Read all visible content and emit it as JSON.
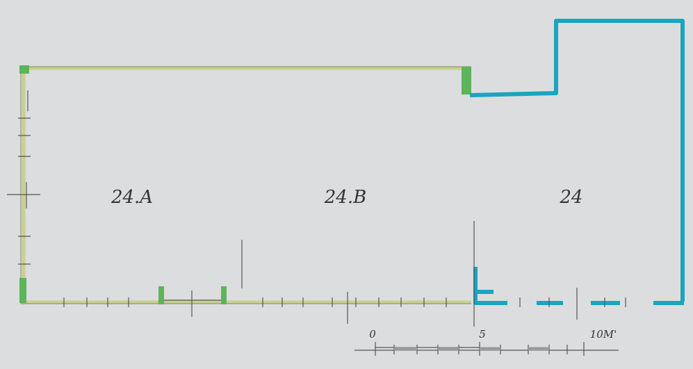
{
  "rooms": [
    {
      "label": "24.A"
    },
    {
      "label": "24.B"
    },
    {
      "label": "24"
    }
  ],
  "scale": {
    "labels": [
      "0",
      "5",
      "10M'"
    ]
  }
}
